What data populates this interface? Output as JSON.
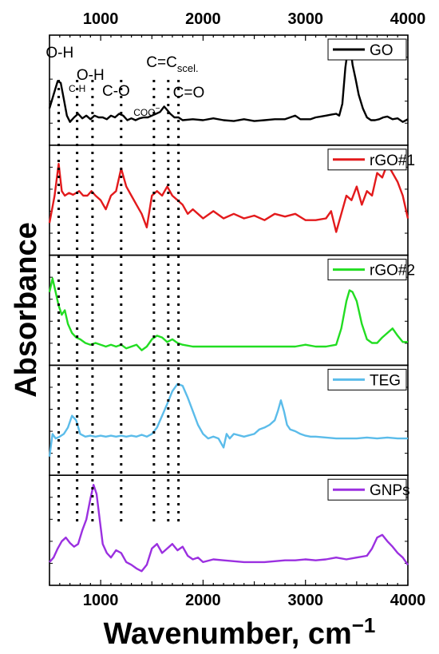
{
  "chart_data": {
    "type": "line",
    "xlabel": "Wavenumber, cm",
    "xlabel_sup": "−1",
    "ylabel": "Absorbance",
    "xlim": [
      500,
      4000
    ],
    "x_ticks": [
      1000,
      2000,
      3000,
      4000
    ],
    "x_tick_labels": [
      "1000",
      "2000",
      "3000",
      "4000"
    ],
    "grid": false,
    "panels": 5,
    "legend_placement": "top-right of each panel",
    "marker_lines": [
      590,
      770,
      920,
      1200,
      1520,
      1660,
      1760
    ],
    "annotations": [
      {
        "text": "O-H",
        "small": false,
        "x": 600
      },
      {
        "text": "C-H",
        "small": true,
        "x": 770
      },
      {
        "text": "O-H",
        "small": false,
        "x": 900
      },
      {
        "text": "C-O",
        "small": false,
        "x": 1150
      },
      {
        "text": "COO",
        "sup": "−",
        "small": true,
        "x": 1450
      },
      {
        "text": "C=C",
        "sub": "scel.",
        "small": false,
        "x": 1700
      },
      {
        "text": "C=O",
        "small": false,
        "x": 1860
      }
    ],
    "series": [
      {
        "name": "GO",
        "color": "#000000",
        "panel": 0,
        "x": [
          500,
          540,
          580,
          610,
          640,
          670,
          700,
          740,
          780,
          820,
          860,
          900,
          940,
          980,
          1020,
          1060,
          1100,
          1140,
          1180,
          1220,
          1260,
          1300,
          1340,
          1380,
          1420,
          1460,
          1500,
          1540,
          1580,
          1620,
          1650,
          1680,
          1720,
          1760,
          1800,
          1900,
          2000,
          2100,
          2200,
          2300,
          2400,
          2500,
          2600,
          2700,
          2800,
          2900,
          2950,
          3000,
          3050,
          3100,
          3150,
          3200,
          3250,
          3300,
          3330,
          3360,
          3390,
          3420,
          3440,
          3460,
          3490,
          3520,
          3560,
          3600,
          3640,
          3680,
          3720,
          3760,
          3800,
          3850,
          3900,
          3950,
          4000
        ],
        "y": [
          0.3,
          0.45,
          0.6,
          0.58,
          0.4,
          0.22,
          0.15,
          0.2,
          0.24,
          0.19,
          0.22,
          0.18,
          0.22,
          0.2,
          0.2,
          0.18,
          0.22,
          0.2,
          0.24,
          0.22,
          0.17,
          0.19,
          0.17,
          0.19,
          0.2,
          0.2,
          0.22,
          0.24,
          0.26,
          0.32,
          0.28,
          0.24,
          0.2,
          0.2,
          0.17,
          0.18,
          0.17,
          0.19,
          0.17,
          0.16,
          0.18,
          0.16,
          0.17,
          0.18,
          0.18,
          0.22,
          0.18,
          0.18,
          0.18,
          0.2,
          0.21,
          0.22,
          0.23,
          0.24,
          0.22,
          0.35,
          0.75,
          1.0,
          0.96,
          0.78,
          0.62,
          0.45,
          0.3,
          0.2,
          0.17,
          0.17,
          0.18,
          0.2,
          0.21,
          0.18,
          0.19,
          0.15,
          0.18
        ]
      },
      {
        "name": "rGO#1",
        "color": "#e31a1c",
        "panel": 1,
        "x": [
          500,
          550,
          590,
          620,
          650,
          690,
          730,
          760,
          790,
          830,
          870,
          910,
          950,
          1000,
          1050,
          1100,
          1150,
          1200,
          1250,
          1300,
          1350,
          1400,
          1450,
          1500,
          1550,
          1600,
          1650,
          1700,
          1750,
          1800,
          1850,
          1900,
          1950,
          2000,
          2100,
          2200,
          2300,
          2400,
          2500,
          2600,
          2700,
          2800,
          2900,
          3000,
          3100,
          3200,
          3250,
          3300,
          3350,
          3400,
          3450,
          3500,
          3550,
          3600,
          3650,
          3700,
          3750,
          3800,
          3850,
          3900,
          3950,
          4000
        ],
        "y": [
          0.25,
          0.55,
          0.9,
          0.6,
          0.55,
          0.58,
          0.56,
          0.58,
          0.6,
          0.55,
          0.55,
          0.6,
          0.55,
          0.5,
          0.4,
          0.55,
          0.6,
          0.85,
          0.65,
          0.55,
          0.45,
          0.35,
          0.2,
          0.55,
          0.6,
          0.55,
          0.65,
          0.55,
          0.5,
          0.45,
          0.35,
          0.4,
          0.35,
          0.3,
          0.38,
          0.3,
          0.35,
          0.3,
          0.33,
          0.28,
          0.35,
          0.32,
          0.35,
          0.28,
          0.28,
          0.3,
          0.38,
          0.15,
          0.35,
          0.55,
          0.5,
          0.65,
          0.45,
          0.6,
          0.55,
          0.8,
          0.75,
          0.9,
          0.8,
          0.7,
          0.55,
          0.3
        ]
      },
      {
        "name": "rGO#2",
        "color": "#22dd22",
        "panel": 2,
        "x": [
          500,
          530,
          560,
          590,
          620,
          650,
          680,
          720,
          760,
          800,
          850,
          900,
          950,
          1000,
          1050,
          1100,
          1150,
          1200,
          1250,
          1300,
          1350,
          1400,
          1450,
          1500,
          1550,
          1600,
          1650,
          1700,
          1750,
          1800,
          1900,
          2000,
          2100,
          2200,
          2300,
          2400,
          2500,
          2600,
          2700,
          2800,
          2900,
          3000,
          3100,
          3200,
          3300,
          3350,
          3400,
          3430,
          3460,
          3500,
          3550,
          3600,
          3650,
          3700,
          3750,
          3800,
          3850,
          3900,
          3950,
          4000
        ],
        "y": [
          0.7,
          0.85,
          0.7,
          0.55,
          0.45,
          0.5,
          0.35,
          0.25,
          0.2,
          0.18,
          0.14,
          0.12,
          0.14,
          0.12,
          0.1,
          0.12,
          0.1,
          0.12,
          0.08,
          0.1,
          0.12,
          0.06,
          0.1,
          0.18,
          0.22,
          0.2,
          0.15,
          0.18,
          0.14,
          0.12,
          0.1,
          0.1,
          0.1,
          0.1,
          0.1,
          0.1,
          0.1,
          0.1,
          0.1,
          0.1,
          0.1,
          0.12,
          0.1,
          0.1,
          0.12,
          0.3,
          0.6,
          0.72,
          0.7,
          0.6,
          0.35,
          0.18,
          0.14,
          0.14,
          0.2,
          0.25,
          0.3,
          0.22,
          0.15,
          0.15
        ]
      },
      {
        "name": "TEG",
        "color": "#5bbcea",
        "panel": 3,
        "x": [
          500,
          530,
          560,
          600,
          640,
          680,
          720,
          760,
          800,
          850,
          900,
          950,
          1000,
          1050,
          1100,
          1150,
          1200,
          1250,
          1300,
          1350,
          1400,
          1450,
          1500,
          1550,
          1600,
          1650,
          1700,
          1750,
          1800,
          1850,
          1900,
          1950,
          2000,
          2050,
          2100,
          2150,
          2200,
          2230,
          2260,
          2300,
          2400,
          2500,
          2550,
          2600,
          2650,
          2700,
          2730,
          2760,
          2790,
          2820,
          2850,
          2900,
          2950,
          3000,
          3050,
          3100,
          3200,
          3300,
          3400,
          3500,
          3600,
          3700,
          3800,
          3900,
          4000
        ],
        "y": [
          0.1,
          0.35,
          0.3,
          0.32,
          0.35,
          0.42,
          0.55,
          0.5,
          0.35,
          0.32,
          0.33,
          0.32,
          0.33,
          0.32,
          0.33,
          0.32,
          0.33,
          0.32,
          0.33,
          0.32,
          0.34,
          0.32,
          0.35,
          0.42,
          0.55,
          0.68,
          0.82,
          0.9,
          0.88,
          0.75,
          0.6,
          0.45,
          0.35,
          0.3,
          0.32,
          0.3,
          0.2,
          0.35,
          0.3,
          0.35,
          0.32,
          0.35,
          0.4,
          0.42,
          0.45,
          0.5,
          0.6,
          0.72,
          0.6,
          0.45,
          0.4,
          0.38,
          0.35,
          0.33,
          0.32,
          0.32,
          0.31,
          0.3,
          0.3,
          0.3,
          0.31,
          0.3,
          0.31,
          0.3,
          0.3
        ]
      },
      {
        "name": "GNPs",
        "color": "#9b30e0",
        "panel": 4,
        "x": [
          500,
          540,
          580,
          620,
          660,
          700,
          740,
          780,
          820,
          860,
          900,
          930,
          960,
          990,
          1020,
          1060,
          1100,
          1150,
          1200,
          1250,
          1300,
          1350,
          1400,
          1450,
          1500,
          1550,
          1600,
          1650,
          1700,
          1750,
          1800,
          1850,
          1900,
          1950,
          2000,
          2100,
          2200,
          2300,
          2400,
          2500,
          2600,
          2700,
          2800,
          2900,
          3000,
          3100,
          3200,
          3300,
          3400,
          3500,
          3600,
          3650,
          3700,
          3750,
          3800,
          3850,
          3900,
          3950,
          4000
        ],
        "y": [
          0.15,
          0.2,
          0.3,
          0.38,
          0.42,
          0.36,
          0.32,
          0.35,
          0.5,
          0.62,
          0.85,
          1.0,
          0.9,
          0.62,
          0.35,
          0.25,
          0.2,
          0.28,
          0.25,
          0.15,
          0.12,
          0.08,
          0.05,
          0.12,
          0.3,
          0.35,
          0.25,
          0.3,
          0.35,
          0.28,
          0.32,
          0.22,
          0.18,
          0.2,
          0.15,
          0.18,
          0.17,
          0.16,
          0.15,
          0.15,
          0.15,
          0.16,
          0.17,
          0.17,
          0.18,
          0.17,
          0.18,
          0.2,
          0.18,
          0.2,
          0.22,
          0.3,
          0.42,
          0.45,
          0.38,
          0.32,
          0.25,
          0.2,
          0.12
        ]
      }
    ]
  }
}
